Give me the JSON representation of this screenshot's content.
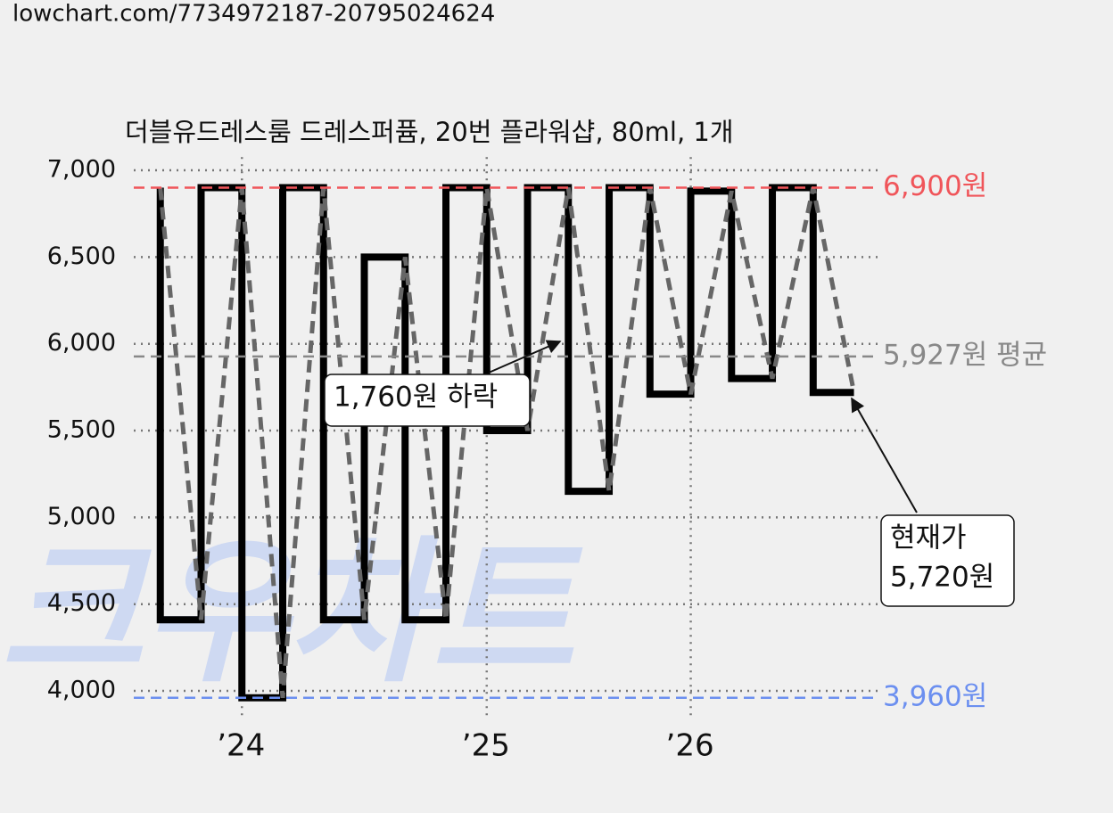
{
  "page_url": "lowchart.com/7734972187-20795024624",
  "watermark": "크우차트",
  "chart_data": {
    "type": "line",
    "step": true,
    "title": "더블유드레스룸 드레스퍼퓸, 20번 플라워샵, 80ml, 1개",
    "x": [
      0,
      1,
      2,
      3,
      4,
      5,
      6,
      7,
      8,
      9,
      10,
      11,
      12,
      13,
      14,
      15,
      16,
      17
    ],
    "series": [
      {
        "color": "#000000",
        "values": [
          6900,
          4410,
          6900,
          3960,
          6900,
          4410,
          6500,
          4410,
          6900,
          5500,
          6900,
          5150,
          6900,
          5710,
          6880,
          5800,
          6900,
          5720
        ]
      }
    ],
    "xlim": [
      -0.65,
      17.6
    ],
    "xticks": [
      {
        "value": 2,
        "label": "’24"
      },
      {
        "value": 8,
        "label": "’25"
      },
      {
        "value": 13,
        "label": "’26"
      }
    ],
    "ylim": [
      3940,
      7050
    ],
    "yticks": [
      {
        "value": 4000,
        "label": "4,000"
      },
      {
        "value": 4500,
        "label": "4,500"
      },
      {
        "value": 5000,
        "label": "5,000"
      },
      {
        "value": 5500,
        "label": "5,500"
      },
      {
        "value": 6000,
        "label": "6,000"
      },
      {
        "value": 6500,
        "label": "6,500"
      },
      {
        "value": 7000,
        "label": "7,000"
      }
    ],
    "grid": true,
    "reference_lines": [
      {
        "value": 6900,
        "label": "6,900원",
        "color": "#f0555a"
      },
      {
        "value": 5927,
        "label": "5,927원 평균",
        "color": "#888888"
      },
      {
        "value": 3960,
        "label": "3,960원",
        "color": "#6b8ff0"
      }
    ],
    "annotations": [
      {
        "lines": [
          "1,760원 하락"
        ]
      },
      {
        "lines": [
          "현재가",
          "5,720원"
        ]
      }
    ]
  }
}
